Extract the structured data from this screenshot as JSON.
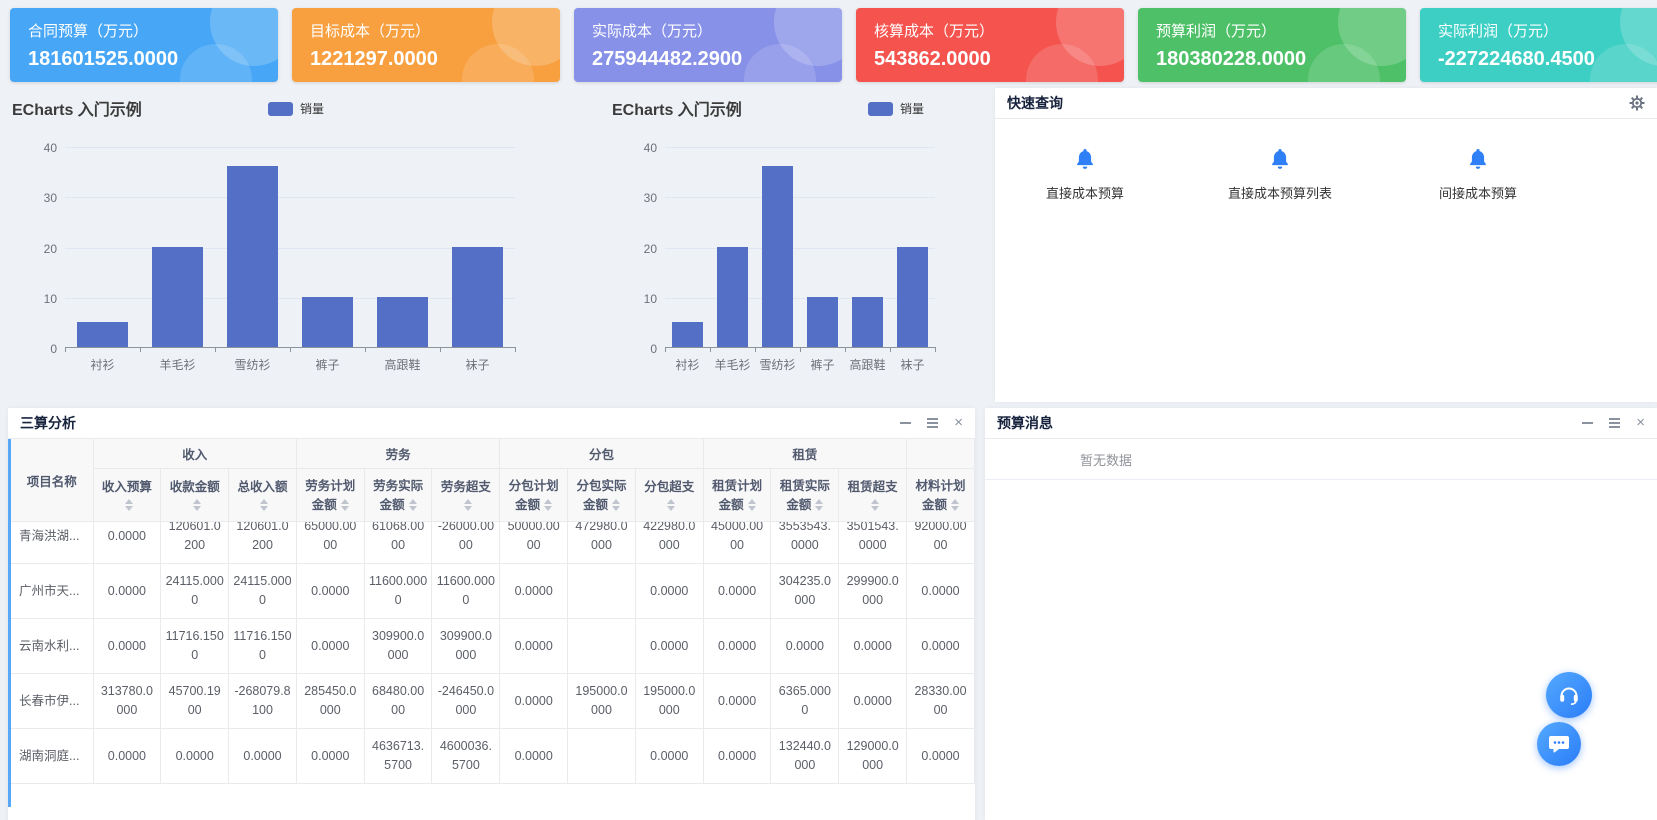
{
  "kpi_cards": [
    {
      "title": "合同预算（万元）",
      "value": "181601525.0000",
      "color": "#47a7f6"
    },
    {
      "title": "目标成本（万元）",
      "value": "1221297.0000",
      "color": "#f8a040"
    },
    {
      "title": "实际成本（万元）",
      "value": "275944482.2900",
      "color": "#8791e8"
    },
    {
      "title": "核算成本（万元）",
      "value": "543862.0000",
      "color": "#f4534e"
    },
    {
      "title": "预算利润（万元）",
      "value": "180380228.0000",
      "color": "#4ec168"
    },
    {
      "title": "实际利润（万元）",
      "value": "-227224680.4500",
      "color": "#3ecfc4"
    }
  ],
  "chart_data": [
    {
      "type": "bar",
      "title": "ECharts 入门示例",
      "categories": [
        "衬衫",
        "羊毛衫",
        "雪纺衫",
        "裤子",
        "高跟鞋",
        "袜子"
      ],
      "series": [
        {
          "name": "销量",
          "values": [
            5,
            20,
            36,
            10,
            10,
            20
          ]
        }
      ],
      "ylim": [
        0,
        40
      ],
      "yticks": [
        0,
        10,
        20,
        30,
        40
      ],
      "bar_color": "#5470c6",
      "grid": true,
      "legend_position": "top"
    },
    {
      "type": "bar",
      "title": "ECharts 入门示例",
      "categories": [
        "衬衫",
        "羊毛衫",
        "雪纺衫",
        "裤子",
        "高跟鞋",
        "袜子"
      ],
      "series": [
        {
          "name": "销量",
          "values": [
            5,
            20,
            36,
            10,
            10,
            20
          ]
        }
      ],
      "ylim": [
        0,
        40
      ],
      "yticks": [
        0,
        10,
        20,
        30,
        40
      ],
      "bar_color": "#5470c6",
      "grid": true,
      "legend_position": "top"
    }
  ],
  "quick_query": {
    "title": "快速查询",
    "bell_color": "#2f80f7",
    "items": [
      {
        "label": "直接成本预算"
      },
      {
        "label": "直接成本预算列表"
      },
      {
        "label": "间接成本预算"
      }
    ]
  },
  "analysis_panel": {
    "title": "三算分析",
    "table": {
      "first_col": "项目名称",
      "groups": [
        {
          "label": "收入",
          "span": 3
        },
        {
          "label": "劳务",
          "span": 3
        },
        {
          "label": "分包",
          "span": 3
        },
        {
          "label": "租赁",
          "span": 3
        },
        {
          "label": "",
          "span": 1
        }
      ],
      "columns": [
        "收入预算",
        "收款金额",
        "总收入额",
        "劳务计划金额",
        "劳务实际金额",
        "劳务超支",
        "分包计划金额",
        "分包实际金额",
        "分包超支",
        "租赁计划金额",
        "租赁实际金额",
        "租赁超支",
        "材料计划金额"
      ],
      "rows": [
        {
          "name": "青海洪湖...",
          "values": [
            "0.0000",
            "120601.0200",
            "120601.0200",
            "65000.0000",
            "61068.0000",
            "-26000.0000",
            "50000.0000",
            "472980.0000",
            "422980.0000",
            "45000.0000",
            "3553543.0000",
            "3501543.0000",
            "92000.0000"
          ]
        },
        {
          "name": "广州市天...",
          "values": [
            "0.0000",
            "24115.0000",
            "24115.0000",
            "0.0000",
            "11600.0000",
            "11600.0000",
            "0.0000",
            "",
            "0.0000",
            "0.0000",
            "304235.0000",
            "299900.0000",
            "0.0000"
          ]
        },
        {
          "name": "云南水利...",
          "values": [
            "0.0000",
            "11716.1500",
            "11716.1500",
            "0.0000",
            "309900.0000",
            "309900.0000",
            "0.0000",
            "",
            "0.0000",
            "0.0000",
            "0.0000",
            "0.0000",
            "0.0000"
          ]
        },
        {
          "name": "长春市伊...",
          "values": [
            "313780.0000",
            "45700.1900",
            "-268079.8100",
            "285450.0000",
            "68480.0000",
            "-246450.0000",
            "0.0000",
            "195000.0000",
            "195000.0000",
            "0.0000",
            "6365.0000",
            "0.0000",
            "28330.0000"
          ]
        },
        {
          "name": "湖南洞庭...",
          "values": [
            "0.0000",
            "0.0000",
            "0.0000",
            "0.0000",
            "4636713.5700",
            "4600036.5700",
            "0.0000",
            "",
            "0.0000",
            "0.0000",
            "132440.0000",
            "129000.0000",
            "0.0000"
          ]
        }
      ]
    }
  },
  "message_panel": {
    "title": "预算消息",
    "empty_text": "暂无数据"
  },
  "icons": {
    "close_glyph": "×"
  }
}
